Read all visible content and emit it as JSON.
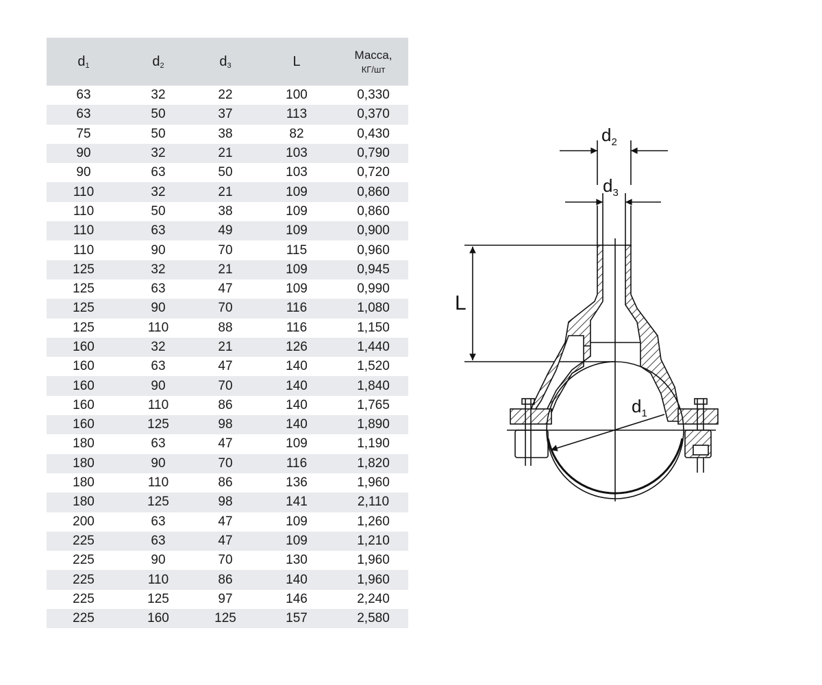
{
  "table": {
    "headers": [
      {
        "base": "d",
        "sub": "1"
      },
      {
        "base": "d",
        "sub": "2"
      },
      {
        "base": "d",
        "sub": "3"
      },
      {
        "base": "L",
        "sub": ""
      },
      {
        "base": "Масса,",
        "unit": "КГ/шт"
      }
    ],
    "rows": [
      [
        "63",
        "32",
        "22",
        "100",
        "0,330"
      ],
      [
        "63",
        "50",
        "37",
        "113",
        "0,370"
      ],
      [
        "75",
        "50",
        "38",
        "82",
        "0,430"
      ],
      [
        "90",
        "32",
        "21",
        "103",
        "0,790"
      ],
      [
        "90",
        "63",
        "50",
        "103",
        "0,720"
      ],
      [
        "110",
        "32",
        "21",
        "109",
        "0,860"
      ],
      [
        "110",
        "50",
        "38",
        "109",
        "0,860"
      ],
      [
        "110",
        "63",
        "49",
        "109",
        "0,900"
      ],
      [
        "110",
        "90",
        "70",
        "115",
        "0,960"
      ],
      [
        "125",
        "32",
        "21",
        "109",
        "0,945"
      ],
      [
        "125",
        "63",
        "47",
        "109",
        "0,990"
      ],
      [
        "125",
        "90",
        "70",
        "116",
        "1,080"
      ],
      [
        "125",
        "110",
        "88",
        "116",
        "1,150"
      ],
      [
        "160",
        "32",
        "21",
        "126",
        "1,440"
      ],
      [
        "160",
        "63",
        "47",
        "140",
        "1,520"
      ],
      [
        "160",
        "90",
        "70",
        "140",
        "1,840"
      ],
      [
        "160",
        "110",
        "86",
        "140",
        "1,765"
      ],
      [
        "160",
        "125",
        "98",
        "140",
        "1,890"
      ],
      [
        "180",
        "63",
        "47",
        "109",
        "1,190"
      ],
      [
        "180",
        "90",
        "70",
        "116",
        "1,820"
      ],
      [
        "180",
        "110",
        "86",
        "136",
        "1,960"
      ],
      [
        "180",
        "125",
        "98",
        "141",
        "2,110"
      ],
      [
        "200",
        "63",
        "47",
        "109",
        "1,260"
      ],
      [
        "225",
        "63",
        "47",
        "109",
        "1,210"
      ],
      [
        "225",
        "90",
        "70",
        "130",
        "1,960"
      ],
      [
        "225",
        "110",
        "86",
        "140",
        "1,960"
      ],
      [
        "225",
        "125",
        "97",
        "146",
        "2,240"
      ],
      [
        "225",
        "160",
        "125",
        "157",
        "2,580"
      ]
    ]
  },
  "diagram": {
    "labels": {
      "d2": {
        "base": "d",
        "sub": "2"
      },
      "d3": {
        "base": "d",
        "sub": "3"
      },
      "L": "L",
      "d1": {
        "base": "d",
        "sub": "1"
      }
    }
  },
  "colors": {
    "header_bg": "#d9dcdf",
    "stripe_bg": "#e8eaed",
    "text": "#1a1a1a"
  }
}
